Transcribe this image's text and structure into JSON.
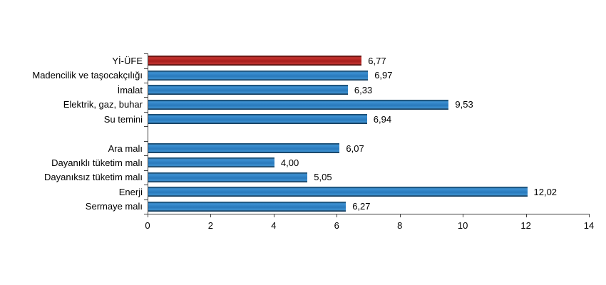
{
  "chart_data": {
    "type": "bar",
    "orientation": "horizontal",
    "title": "",
    "xlabel": "",
    "ylabel": "",
    "grid": false,
    "legend": false,
    "xlim": [
      0,
      14
    ],
    "x_ticks": [
      0,
      2,
      4,
      6,
      8,
      10,
      12,
      14
    ],
    "x_tick_labels": [
      "0",
      "2",
      "4",
      "6",
      "8",
      "10",
      "12",
      "14"
    ],
    "decimal_separator": "comma",
    "categories": [
      "Yİ-ÜFE",
      "Madencilik ve taşocakçılığı",
      "İmalat",
      "Elektrik, gaz, buhar",
      "Su temini",
      "",
      "Ara malı",
      "Dayanıklı tüketim malı",
      "Dayanıksız tüketim malı",
      "Enerji",
      "Sermaye malı"
    ],
    "values": [
      6.77,
      6.97,
      6.33,
      9.53,
      6.94,
      null,
      6.07,
      4.0,
      5.05,
      12.02,
      6.27
    ],
    "value_labels": [
      "6,77",
      "6,97",
      "6,33",
      "9,53",
      "6,94",
      "",
      "6,07",
      "4,00",
      "5,05",
      "12,02",
      "6,27"
    ],
    "highlight_category": "Yİ-ÜFE",
    "colors": {
      "bar_default": "#2e80c3",
      "bar_highlight": "#b0221f",
      "axis": "#404040",
      "text": "#000000",
      "background": "#ffffff"
    }
  }
}
